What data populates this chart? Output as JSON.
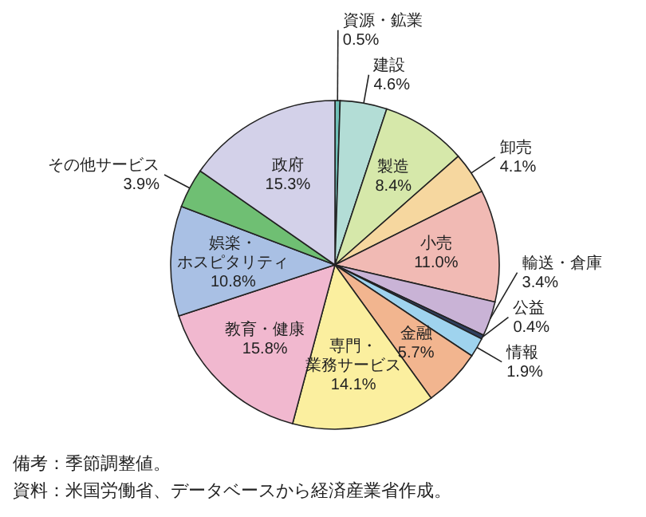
{
  "chart_data": {
    "type": "pie",
    "categories": [
      "資源・鉱業",
      "建設",
      "製造",
      "卸売",
      "小売",
      "輸送・倉庫",
      "公益",
      "情報",
      "金融",
      "専門・業務サービス",
      "教育・健康",
      "娯楽・ホスピタリティ",
      "その他サービス",
      "政府"
    ],
    "values": [
      0.5,
      4.6,
      8.4,
      4.1,
      11.0,
      3.4,
      0.4,
      1.9,
      5.7,
      14.1,
      15.8,
      10.8,
      3.9,
      15.3
    ],
    "value_labels": [
      "0.5%",
      "4.6%",
      "8.4%",
      "4.1%",
      "11.0%",
      "3.4%",
      "0.4%",
      "1.9%",
      "5.7%",
      "14.1%",
      "15.8%",
      "10.8%",
      "3.9%",
      "15.3%"
    ],
    "colors": [
      "#6fc0b8",
      "#b3ddd6",
      "#d6e8aa",
      "#f6d79f",
      "#f1bab4",
      "#c9b3d6",
      "#2f3f5f",
      "#9fd3ee",
      "#f2b58f",
      "#fbef9f",
      "#f1b8cf",
      "#a9c0e4",
      "#6fbf73",
      "#d3d1e9"
    ],
    "annotations": [
      "備考：季節調整値。",
      "資料：米国労働省、データベースから経済産業省作成。"
    ]
  }
}
